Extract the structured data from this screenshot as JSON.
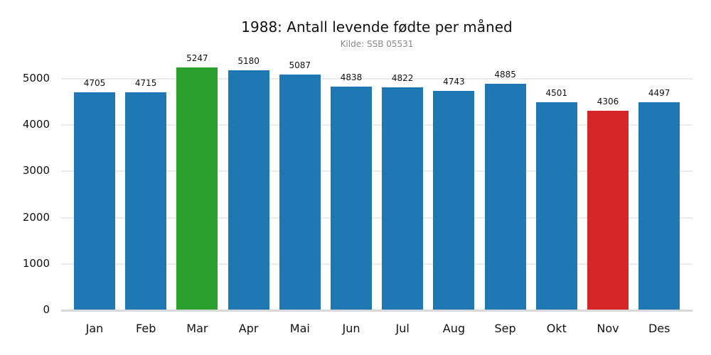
{
  "chart_data": {
    "type": "bar",
    "title": "1988: Antall levende fødte per måned",
    "subtitle": "Kilde: SSB 05531",
    "xlabel": "",
    "ylabel": "",
    "categories": [
      "Jan",
      "Feb",
      "Mar",
      "Apr",
      "Mai",
      "Jun",
      "Jul",
      "Aug",
      "Sep",
      "Okt",
      "Nov",
      "Des"
    ],
    "values": [
      4705,
      4715,
      5247,
      5180,
      5087,
      4838,
      4822,
      4743,
      4885,
      4501,
      4306,
      4497
    ],
    "colors": [
      "#1f77b4",
      "#1f77b4",
      "#2ca02c",
      "#1f77b4",
      "#1f77b4",
      "#1f77b4",
      "#1f77b4",
      "#1f77b4",
      "#1f77b4",
      "#1f77b4",
      "#d62728",
      "#1f77b4"
    ],
    "highlight": {
      "max": {
        "month": "Mar",
        "color": "#2ca02c"
      },
      "min": {
        "month": "Nov",
        "color": "#d62728"
      }
    },
    "yticks": [
      0,
      1000,
      2000,
      3000,
      4000,
      5000
    ],
    "ylim": [
      0,
      5500
    ],
    "grid": true,
    "legend": null,
    "data_labels": true
  }
}
